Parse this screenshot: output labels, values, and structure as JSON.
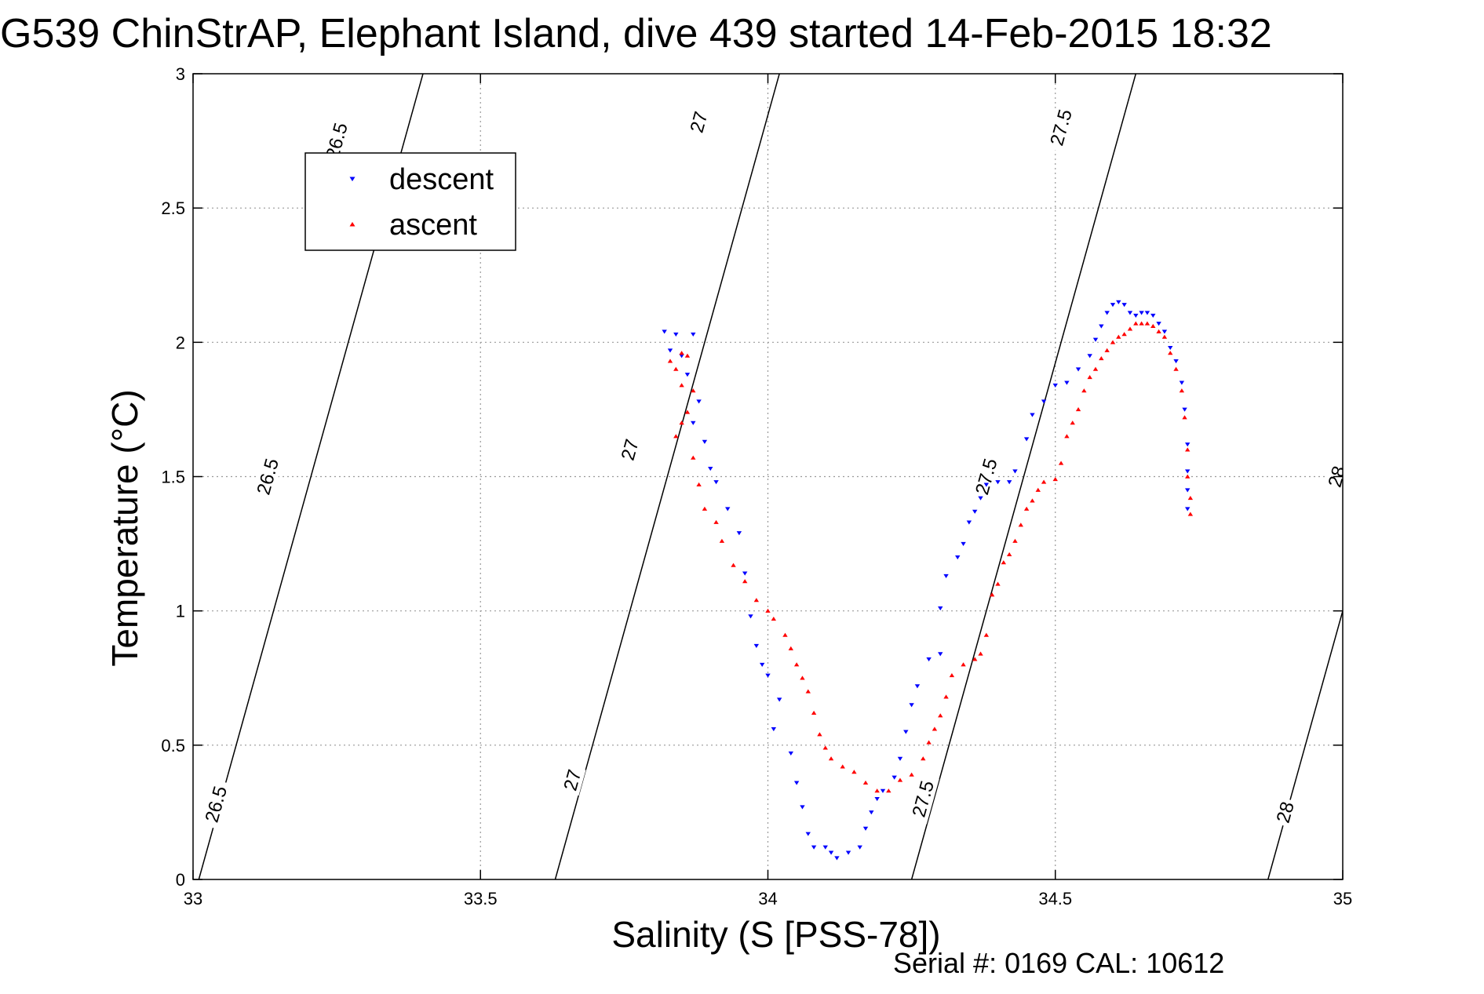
{
  "chart_data": {
    "type": "scatter",
    "title": "G539 ChinStrAP, Elephant Island, dive 439 started 14-Feb-2015 18:32",
    "xlabel": "Salinity (S [PSS-78])",
    "ylabel": "Temperature (°C)",
    "footer": "Serial #: 0169 CAL: 10612",
    "xlim": [
      33,
      35
    ],
    "ylim": [
      0,
      3
    ],
    "xticks": [
      33,
      33.5,
      34,
      34.5,
      35
    ],
    "yticks": [
      0,
      0.5,
      1,
      1.5,
      2,
      2.5,
      3
    ],
    "xtick_labels": [
      "33",
      "33.5",
      "34",
      "34.5",
      "35"
    ],
    "ytick_labels": [
      "0",
      "0.5",
      "1",
      "1.5",
      "2",
      "2.5",
      "3"
    ],
    "grid": true,
    "grid_style": "dotted",
    "legend": {
      "placement": "top-left",
      "entries": [
        "descent",
        "ascent"
      ]
    },
    "colors": {
      "descent": "#0000ff",
      "ascent": "#ff0000",
      "contour": "#000000",
      "axes": "#000000",
      "grid": "#999999"
    },
    "density_contours": [
      {
        "label": "26.5",
        "line": [
          [
            33.01,
            0
          ],
          [
            33.4,
            3
          ]
        ],
        "label_positions": [
          [
            33.04,
            0.28
          ],
          [
            33.13,
            1.5
          ],
          [
            33.25,
            2.75
          ]
        ]
      },
      {
        "label": "27",
        "line": [
          [
            33.63,
            0
          ],
          [
            34.02,
            3
          ]
        ],
        "label_positions": [
          [
            33.66,
            0.37
          ],
          [
            33.76,
            1.6
          ],
          [
            33.88,
            2.82
          ]
        ]
      },
      {
        "label": "27.5",
        "line": [
          [
            34.25,
            0
          ],
          [
            34.64,
            3
          ]
        ],
        "label_positions": [
          [
            34.27,
            0.3
          ],
          [
            34.38,
            1.5
          ],
          [
            34.51,
            2.8
          ]
        ]
      },
      {
        "label": "28",
        "line": [
          [
            34.87,
            0
          ],
          [
            35.26,
            3
          ]
        ],
        "label_positions": [
          [
            34.9,
            0.25
          ],
          [
            34.99,
            1.5
          ]
        ]
      }
    ],
    "series": [
      {
        "name": "descent",
        "marker": "triangle-down",
        "points": [
          [
            33.82,
            2.04
          ],
          [
            33.84,
            2.03
          ],
          [
            33.87,
            2.03
          ],
          [
            33.83,
            1.97
          ],
          [
            33.85,
            1.95
          ],
          [
            33.86,
            1.88
          ],
          [
            33.88,
            1.78
          ],
          [
            33.87,
            1.7
          ],
          [
            33.89,
            1.63
          ],
          [
            33.9,
            1.53
          ],
          [
            33.91,
            1.48
          ],
          [
            33.93,
            1.38
          ],
          [
            33.95,
            1.29
          ],
          [
            33.96,
            1.14
          ],
          [
            33.97,
            0.98
          ],
          [
            33.98,
            0.87
          ],
          [
            33.99,
            0.8
          ],
          [
            34.0,
            0.76
          ],
          [
            34.02,
            0.67
          ],
          [
            34.01,
            0.56
          ],
          [
            34.04,
            0.47
          ],
          [
            34.05,
            0.36
          ],
          [
            34.06,
            0.27
          ],
          [
            34.07,
            0.17
          ],
          [
            34.08,
            0.12
          ],
          [
            34.1,
            0.12
          ],
          [
            34.11,
            0.1
          ],
          [
            34.12,
            0.08
          ],
          [
            34.14,
            0.1
          ],
          [
            34.16,
            0.12
          ],
          [
            34.17,
            0.19
          ],
          [
            34.18,
            0.25
          ],
          [
            34.19,
            0.3
          ],
          [
            34.2,
            0.33
          ],
          [
            34.22,
            0.38
          ],
          [
            34.23,
            0.45
          ],
          [
            34.24,
            0.55
          ],
          [
            34.25,
            0.65
          ],
          [
            34.26,
            0.72
          ],
          [
            34.28,
            0.82
          ],
          [
            34.3,
            0.84
          ],
          [
            34.3,
            1.01
          ],
          [
            34.31,
            1.13
          ],
          [
            34.33,
            1.2
          ],
          [
            34.34,
            1.25
          ],
          [
            34.35,
            1.33
          ],
          [
            34.36,
            1.37
          ],
          [
            34.37,
            1.42
          ],
          [
            34.38,
            1.47
          ],
          [
            34.4,
            1.48
          ],
          [
            34.42,
            1.48
          ],
          [
            34.43,
            1.52
          ],
          [
            34.45,
            1.64
          ],
          [
            34.46,
            1.73
          ],
          [
            34.48,
            1.78
          ],
          [
            34.5,
            1.84
          ],
          [
            34.52,
            1.85
          ],
          [
            34.54,
            1.9
          ],
          [
            34.56,
            1.95
          ],
          [
            34.57,
            2.01
          ],
          [
            34.58,
            2.06
          ],
          [
            34.59,
            2.11
          ],
          [
            34.6,
            2.14
          ],
          [
            34.61,
            2.15
          ],
          [
            34.62,
            2.14
          ],
          [
            34.63,
            2.11
          ],
          [
            34.64,
            2.1
          ],
          [
            34.65,
            2.11
          ],
          [
            34.66,
            2.11
          ],
          [
            34.67,
            2.1
          ],
          [
            34.68,
            2.07
          ],
          [
            34.69,
            2.04
          ],
          [
            34.7,
            1.98
          ],
          [
            34.71,
            1.93
          ],
          [
            34.72,
            1.85
          ],
          [
            34.725,
            1.75
          ],
          [
            34.73,
            1.62
          ],
          [
            34.73,
            1.52
          ],
          [
            34.73,
            1.45
          ],
          [
            34.73,
            1.38
          ]
        ]
      },
      {
        "name": "ascent",
        "marker": "triangle-up",
        "points": [
          [
            33.83,
            1.93
          ],
          [
            33.84,
            1.9
          ],
          [
            33.85,
            1.96
          ],
          [
            33.86,
            1.95
          ],
          [
            33.85,
            1.84
          ],
          [
            33.87,
            1.82
          ],
          [
            33.86,
            1.74
          ],
          [
            33.85,
            1.7
          ],
          [
            33.84,
            1.65
          ],
          [
            33.87,
            1.57
          ],
          [
            33.88,
            1.47
          ],
          [
            33.89,
            1.38
          ],
          [
            33.91,
            1.33
          ],
          [
            33.92,
            1.26
          ],
          [
            33.94,
            1.17
          ],
          [
            33.96,
            1.11
          ],
          [
            33.98,
            1.04
          ],
          [
            34.0,
            1.0
          ],
          [
            34.01,
            0.97
          ],
          [
            34.03,
            0.91
          ],
          [
            34.04,
            0.86
          ],
          [
            34.05,
            0.8
          ],
          [
            34.06,
            0.75
          ],
          [
            34.07,
            0.7
          ],
          [
            34.08,
            0.62
          ],
          [
            34.09,
            0.54
          ],
          [
            34.1,
            0.49
          ],
          [
            34.11,
            0.45
          ],
          [
            34.13,
            0.42
          ],
          [
            34.15,
            0.4
          ],
          [
            34.17,
            0.36
          ],
          [
            34.19,
            0.33
          ],
          [
            34.21,
            0.33
          ],
          [
            34.23,
            0.37
          ],
          [
            34.25,
            0.39
          ],
          [
            34.27,
            0.45
          ],
          [
            34.28,
            0.51
          ],
          [
            34.29,
            0.56
          ],
          [
            34.3,
            0.61
          ],
          [
            34.31,
            0.68
          ],
          [
            34.32,
            0.76
          ],
          [
            34.34,
            0.8
          ],
          [
            34.36,
            0.82
          ],
          [
            34.37,
            0.84
          ],
          [
            34.38,
            0.91
          ],
          [
            34.39,
            1.06
          ],
          [
            34.4,
            1.1
          ],
          [
            34.41,
            1.18
          ],
          [
            34.42,
            1.21
          ],
          [
            34.43,
            1.26
          ],
          [
            34.44,
            1.32
          ],
          [
            34.45,
            1.38
          ],
          [
            34.46,
            1.41
          ],
          [
            34.47,
            1.45
          ],
          [
            34.48,
            1.48
          ],
          [
            34.5,
            1.49
          ],
          [
            34.51,
            1.55
          ],
          [
            34.52,
            1.65
          ],
          [
            34.53,
            1.7
          ],
          [
            34.54,
            1.75
          ],
          [
            34.55,
            1.82
          ],
          [
            34.56,
            1.87
          ],
          [
            34.57,
            1.9
          ],
          [
            34.58,
            1.94
          ],
          [
            34.59,
            1.97
          ],
          [
            34.6,
            2.0
          ],
          [
            34.61,
            2.02
          ],
          [
            34.62,
            2.03
          ],
          [
            34.63,
            2.05
          ],
          [
            34.64,
            2.07
          ],
          [
            34.65,
            2.07
          ],
          [
            34.66,
            2.07
          ],
          [
            34.67,
            2.06
          ],
          [
            34.68,
            2.04
          ],
          [
            34.69,
            2.02
          ],
          [
            34.7,
            1.96
          ],
          [
            34.71,
            1.9
          ],
          [
            34.72,
            1.82
          ],
          [
            34.725,
            1.72
          ],
          [
            34.73,
            1.6
          ],
          [
            34.73,
            1.5
          ],
          [
            34.735,
            1.42
          ],
          [
            34.735,
            1.36
          ]
        ]
      }
    ]
  }
}
